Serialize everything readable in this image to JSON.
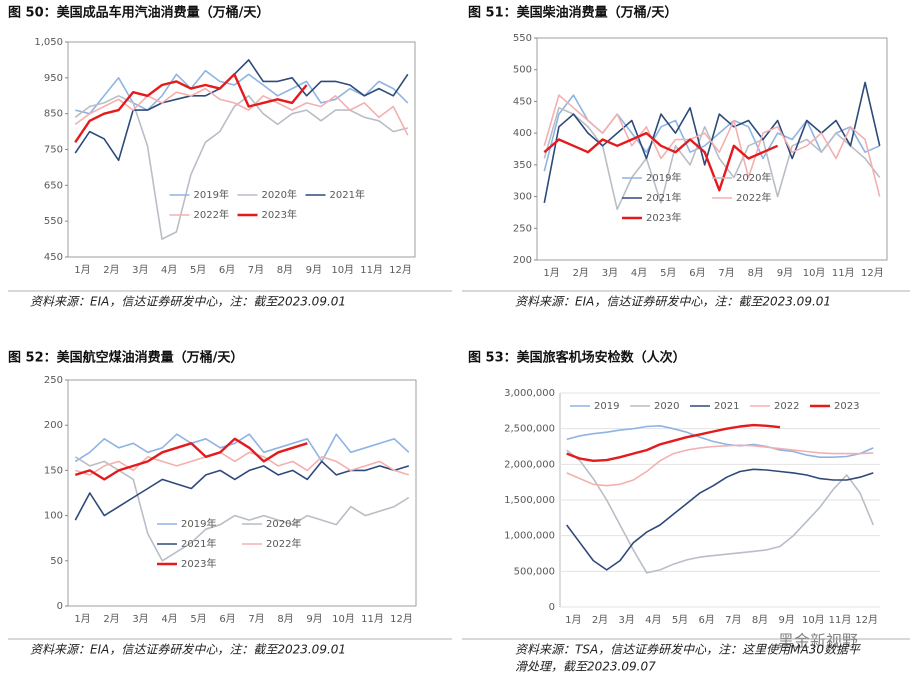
{
  "watermark": "黑金新视野",
  "chart_data": [
    {
      "type": "line",
      "title": "图 50：美国成品车用汽油消费量（万桶/天）",
      "source": [
        "资料来源：EIA，信达证券研发中心，注：截至2023.09.01"
      ],
      "categories": [
        "1月",
        null,
        "2月",
        null,
        "3月",
        null,
        "4月",
        null,
        "5月",
        null,
        "6月",
        null,
        "7月",
        null,
        "8月",
        null,
        "9月",
        null,
        "10月",
        null,
        "11月",
        null,
        "12月",
        null
      ],
      "ylim": [
        450,
        1050
      ],
      "yticks": [
        450,
        550,
        650,
        750,
        850,
        950,
        {
          "value": 1050,
          "label": "1,050"
        }
      ],
      "grid": false,
      "legend": "lower right",
      "series": [
        {
          "name": "2019年",
          "color": "#8fb4e3",
          "values": [
            860,
            850,
            900,
            950,
            880,
            860,
            900,
            960,
            920,
            970,
            940,
            930,
            960,
            930,
            900,
            920,
            940,
            880,
            890,
            920,
            900,
            940,
            920,
            880
          ]
        },
        {
          "name": "2020年",
          "color": "#b9bec6",
          "values": [
            840,
            870,
            880,
            900,
            880,
            760,
            500,
            520,
            680,
            770,
            800,
            870,
            900,
            850,
            820,
            850,
            860,
            830,
            860,
            860,
            840,
            830,
            800,
            810
          ]
        },
        {
          "name": "2021年",
          "color": "#2e4a7a",
          "values": [
            740,
            800,
            780,
            720,
            860,
            860,
            880,
            890,
            900,
            900,
            920,
            960,
            1000,
            940,
            940,
            950,
            900,
            940,
            940,
            930,
            900,
            920,
            900,
            960
          ]
        },
        {
          "name": "2022年",
          "color": "#f4b0b0",
          "values": [
            820,
            850,
            870,
            890,
            860,
            900,
            880,
            910,
            900,
            920,
            890,
            880,
            860,
            900,
            880,
            860,
            880,
            870,
            900,
            860,
            880,
            840,
            870,
            790
          ]
        },
        {
          "name": "2023年",
          "color": "#e41a1c",
          "values": [
            770,
            830,
            850,
            860,
            910,
            900,
            930,
            940,
            920,
            930,
            920,
            960,
            870,
            880,
            890,
            880,
            930,
            null,
            null,
            null,
            null,
            null,
            null,
            null
          ]
        }
      ]
    },
    {
      "type": "line",
      "title": "图 51：美国柴油消费量（万桶/天）",
      "source": [
        "资料来源：EIA，信达证券研发中心，注：截至2023.09.01"
      ],
      "categories": [
        "1月",
        null,
        "2月",
        null,
        "3月",
        null,
        "4月",
        null,
        "5月",
        null,
        "6月",
        null,
        "7月",
        null,
        "8月",
        null,
        "9月",
        null,
        "10月",
        null,
        "11月",
        null,
        "12月",
        null
      ],
      "ylim": [
        200,
        550
      ],
      "yticks": [
        200,
        250,
        300,
        350,
        400,
        450,
        500,
        550
      ],
      "grid": false,
      "legend": "lower center",
      "series": [
        {
          "name": "2019年",
          "color": "#8fb4e3",
          "values": [
            340,
            430,
            460,
            420,
            400,
            430,
            400,
            370,
            410,
            420,
            370,
            380,
            400,
            420,
            410,
            360,
            400,
            390,
            420,
            370,
            400,
            410,
            370,
            380
          ]
        },
        {
          "name": "2020年",
          "color": "#b9bec6",
          "values": [
            360,
            440,
            430,
            410,
            380,
            280,
            330,
            360,
            290,
            380,
            350,
            410,
            360,
            330,
            380,
            390,
            300,
            380,
            390,
            370,
            400,
            380,
            360,
            330
          ]
        },
        {
          "name": "2021年",
          "color": "#2e4a7a",
          "values": [
            290,
            410,
            430,
            400,
            380,
            400,
            420,
            360,
            430,
            400,
            440,
            350,
            430,
            410,
            420,
            390,
            420,
            360,
            420,
            400,
            420,
            380,
            480,
            380
          ]
        },
        {
          "name": "2022年",
          "color": "#f4b0b0",
          "values": [
            380,
            460,
            440,
            420,
            400,
            430,
            380,
            410,
            360,
            390,
            390,
            400,
            370,
            420,
            330,
            400,
            410,
            370,
            380,
            400,
            360,
            410,
            390,
            300
          ]
        },
        {
          "name": "2023年",
          "color": "#e41a1c",
          "values": [
            370,
            390,
            380,
            370,
            390,
            380,
            390,
            400,
            380,
            370,
            390,
            370,
            310,
            380,
            360,
            370,
            380,
            null,
            null,
            null,
            null,
            null,
            null,
            null
          ]
        }
      ]
    },
    {
      "type": "line",
      "title": "图 52：美国航空煤油消费量（万桶/天）",
      "source": [
        "资料来源：EIA，信达证券研发中心，注：截至2023.09.01"
      ],
      "categories": [
        "1月",
        null,
        "2月",
        null,
        "3月",
        null,
        "4月",
        null,
        "5月",
        null,
        "6月",
        null,
        "7月",
        null,
        "8月",
        null,
        "9月",
        null,
        "10月",
        null,
        "11月",
        null,
        "12月",
        null
      ],
      "ylim": [
        0,
        250
      ],
      "yticks": [
        0,
        50,
        100,
        150,
        200,
        250
      ],
      "grid": false,
      "legend": "lower center",
      "series": [
        {
          "name": "2019年",
          "color": "#8fb4e3",
          "values": [
            160,
            170,
            185,
            175,
            180,
            170,
            175,
            190,
            180,
            185,
            175,
            180,
            190,
            170,
            175,
            180,
            185,
            160,
            190,
            170,
            175,
            180,
            185,
            170
          ]
        },
        {
          "name": "2020年",
          "color": "#b9bec6",
          "values": [
            165,
            155,
            160,
            150,
            140,
            80,
            50,
            60,
            70,
            85,
            90,
            100,
            95,
            100,
            95,
            90,
            100,
            95,
            90,
            110,
            100,
            105,
            110,
            120
          ]
        },
        {
          "name": "2021年",
          "color": "#2e4a7a",
          "values": [
            95,
            125,
            100,
            110,
            120,
            130,
            140,
            135,
            130,
            145,
            150,
            140,
            150,
            155,
            145,
            150,
            140,
            160,
            145,
            150,
            150,
            155,
            150,
            155
          ]
        },
        {
          "name": "2022年",
          "color": "#f4b0b0",
          "values": [
            150,
            145,
            155,
            160,
            150,
            165,
            160,
            155,
            160,
            165,
            170,
            160,
            170,
            165,
            155,
            160,
            150,
            165,
            160,
            150,
            155,
            160,
            150,
            145
          ]
        },
        {
          "name": "2023年",
          "color": "#e41a1c",
          "values": [
            145,
            150,
            140,
            150,
            155,
            160,
            170,
            175,
            180,
            165,
            170,
            185,
            175,
            160,
            170,
            175,
            180,
            null,
            null,
            null,
            null,
            null,
            null,
            null
          ]
        }
      ]
    },
    {
      "type": "line",
      "title": "图 53：美国旅客机场安检数（人次）",
      "source": [
        "资料来源：TSA，信达证券研发中心，注：这里使用MA30数据平",
        "滑处理，截至2023.09.07"
      ],
      "categories": [
        "1月",
        null,
        "2月",
        null,
        "3月",
        null,
        "4月",
        null,
        "5月",
        null,
        "6月",
        null,
        "7月",
        null,
        "8月",
        null,
        "9月",
        null,
        "10月",
        null,
        "11月",
        null,
        "12月",
        null
      ],
      "ylim": [
        0,
        3000000
      ],
      "yticks": [
        0,
        {
          "value": 500000,
          "label": "500,000"
        },
        {
          "value": 1000000,
          "label": "1,000,000"
        },
        {
          "value": 1500000,
          "label": "1,500,000"
        },
        {
          "value": 2000000,
          "label": "2,000,000"
        },
        {
          "value": 2500000,
          "label": "2,500,000"
        },
        {
          "value": 3000000,
          "label": "3,000,000"
        }
      ],
      "grid": true,
      "legend": "upper center",
      "series": [
        {
          "name": "2019",
          "color": "#8fb4e3",
          "values": [
            2350000,
            2400000,
            2430000,
            2450000,
            2480000,
            2500000,
            2530000,
            2540000,
            2500000,
            2450000,
            2380000,
            2320000,
            2280000,
            2260000,
            2280000,
            2250000,
            2200000,
            2180000,
            2130000,
            2100000,
            2100000,
            2110000,
            2150000,
            2230000
          ]
        },
        {
          "name": "2020",
          "color": "#b9bec6",
          "values": [
            2200000,
            2050000,
            1800000,
            1500000,
            1150000,
            800000,
            480000,
            520000,
            600000,
            660000,
            700000,
            720000,
            740000,
            760000,
            780000,
            800000,
            850000,
            1000000,
            1200000,
            1400000,
            1650000,
            1850000,
            1600000,
            1150000
          ]
        },
        {
          "name": "2021",
          "color": "#2e4a7a",
          "values": [
            1150000,
            900000,
            650000,
            520000,
            650000,
            900000,
            1050000,
            1150000,
            1300000,
            1450000,
            1600000,
            1700000,
            1820000,
            1900000,
            1930000,
            1920000,
            1900000,
            1880000,
            1850000,
            1800000,
            1780000,
            1780000,
            1820000,
            1880000
          ]
        },
        {
          "name": "2022",
          "color": "#f4b0b0",
          "values": [
            1880000,
            1800000,
            1720000,
            1700000,
            1720000,
            1780000,
            1900000,
            2050000,
            2150000,
            2200000,
            2230000,
            2250000,
            2260000,
            2270000,
            2260000,
            2240000,
            2220000,
            2200000,
            2180000,
            2160000,
            2150000,
            2150000,
            2150000,
            2160000
          ]
        },
        {
          "name": "2023",
          "color": "#e41a1c",
          "values": [
            2150000,
            2080000,
            2050000,
            2060000,
            2100000,
            2150000,
            2200000,
            2280000,
            2330000,
            2380000,
            2420000,
            2460000,
            2500000,
            2530000,
            2550000,
            2540000,
            2520000,
            null,
            null,
            null,
            null,
            null,
            null,
            null
          ]
        }
      ]
    }
  ]
}
